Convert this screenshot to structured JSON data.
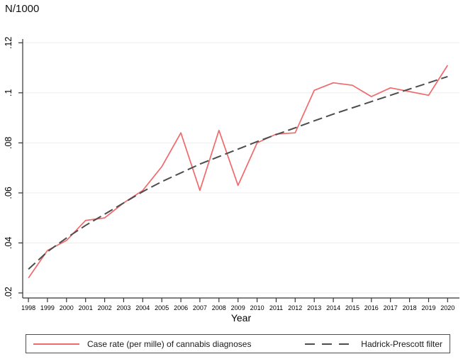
{
  "chart_data": {
    "type": "line",
    "title": "N/1000",
    "xlabel": "Year",
    "ylabel": "",
    "x": [
      1998,
      1999,
      2000,
      2001,
      2002,
      2003,
      2004,
      2005,
      2006,
      2007,
      2008,
      2009,
      2010,
      2011,
      2012,
      2013,
      2014,
      2015,
      2016,
      2017,
      2018,
      2019,
      2020
    ],
    "x_tick_labels": [
      "1998",
      "1999",
      "2000",
      "2001",
      "2002",
      "2003",
      "2004",
      "2005",
      "2006",
      "2007",
      "2008",
      "2009",
      "2010",
      "2011",
      "2012",
      "2013",
      "2014",
      "2015",
      "2016",
      "2017",
      "2018",
      "2019",
      "2020"
    ],
    "yticks": [
      0.02,
      0.04,
      0.06,
      0.08,
      0.1,
      0.12
    ],
    "ytick_labels": [
      ".02",
      ".04",
      ".06",
      ".08",
      ".1",
      ".12"
    ],
    "ylim": [
      0.018,
      0.1215
    ],
    "grid": true,
    "legend_position": "bottom",
    "series": [
      {
        "id": "case-rate-line",
        "name": "Case rate (per mille) of cannabis diagnoses",
        "color": "#f0696c",
        "line_style": "solid",
        "values": [
          0.026,
          0.037,
          0.041,
          0.049,
          0.05,
          0.056,
          0.061,
          0.0705,
          0.084,
          0.061,
          0.085,
          0.063,
          0.08,
          0.0835,
          0.084,
          0.101,
          0.104,
          0.103,
          0.0985,
          0.102,
          0.1005,
          0.099,
          0.111
        ]
      },
      {
        "id": "hp-filter-line",
        "name": "Hadrick-Prescott filter",
        "color": "#4d4d4d",
        "line_style": "dashed",
        "values": [
          0.0295,
          0.0365,
          0.042,
          0.047,
          0.0515,
          0.056,
          0.0605,
          0.0645,
          0.068,
          0.0715,
          0.0745,
          0.0775,
          0.0805,
          0.0833,
          0.086,
          0.0888,
          0.0915,
          0.094,
          0.0965,
          0.099,
          0.1015,
          0.104,
          0.1065
        ]
      }
    ]
  },
  "colors": {
    "grid": "#ededed",
    "axis": "#333333",
    "text": "#000000",
    "legend_border": "#4f4f4f"
  }
}
